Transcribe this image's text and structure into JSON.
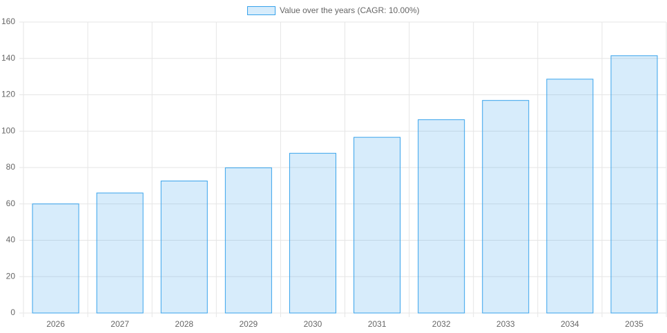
{
  "chart_data": {
    "type": "bar",
    "categories": [
      "2026",
      "2027",
      "2028",
      "2029",
      "2030",
      "2031",
      "2032",
      "2033",
      "2034",
      "2035"
    ],
    "series": [
      {
        "name": "Value over the years (CAGR: 10.00%)",
        "color": "#36a2eb",
        "values": [
          60,
          66,
          72.6,
          79.86,
          87.85,
          96.63,
          106.3,
          116.9,
          128.6,
          141.5
        ]
      }
    ],
    "ylim": [
      0,
      160
    ],
    "yticks": [
      0,
      20,
      40,
      60,
      80,
      100,
      120,
      140,
      160
    ],
    "grid": true
  }
}
